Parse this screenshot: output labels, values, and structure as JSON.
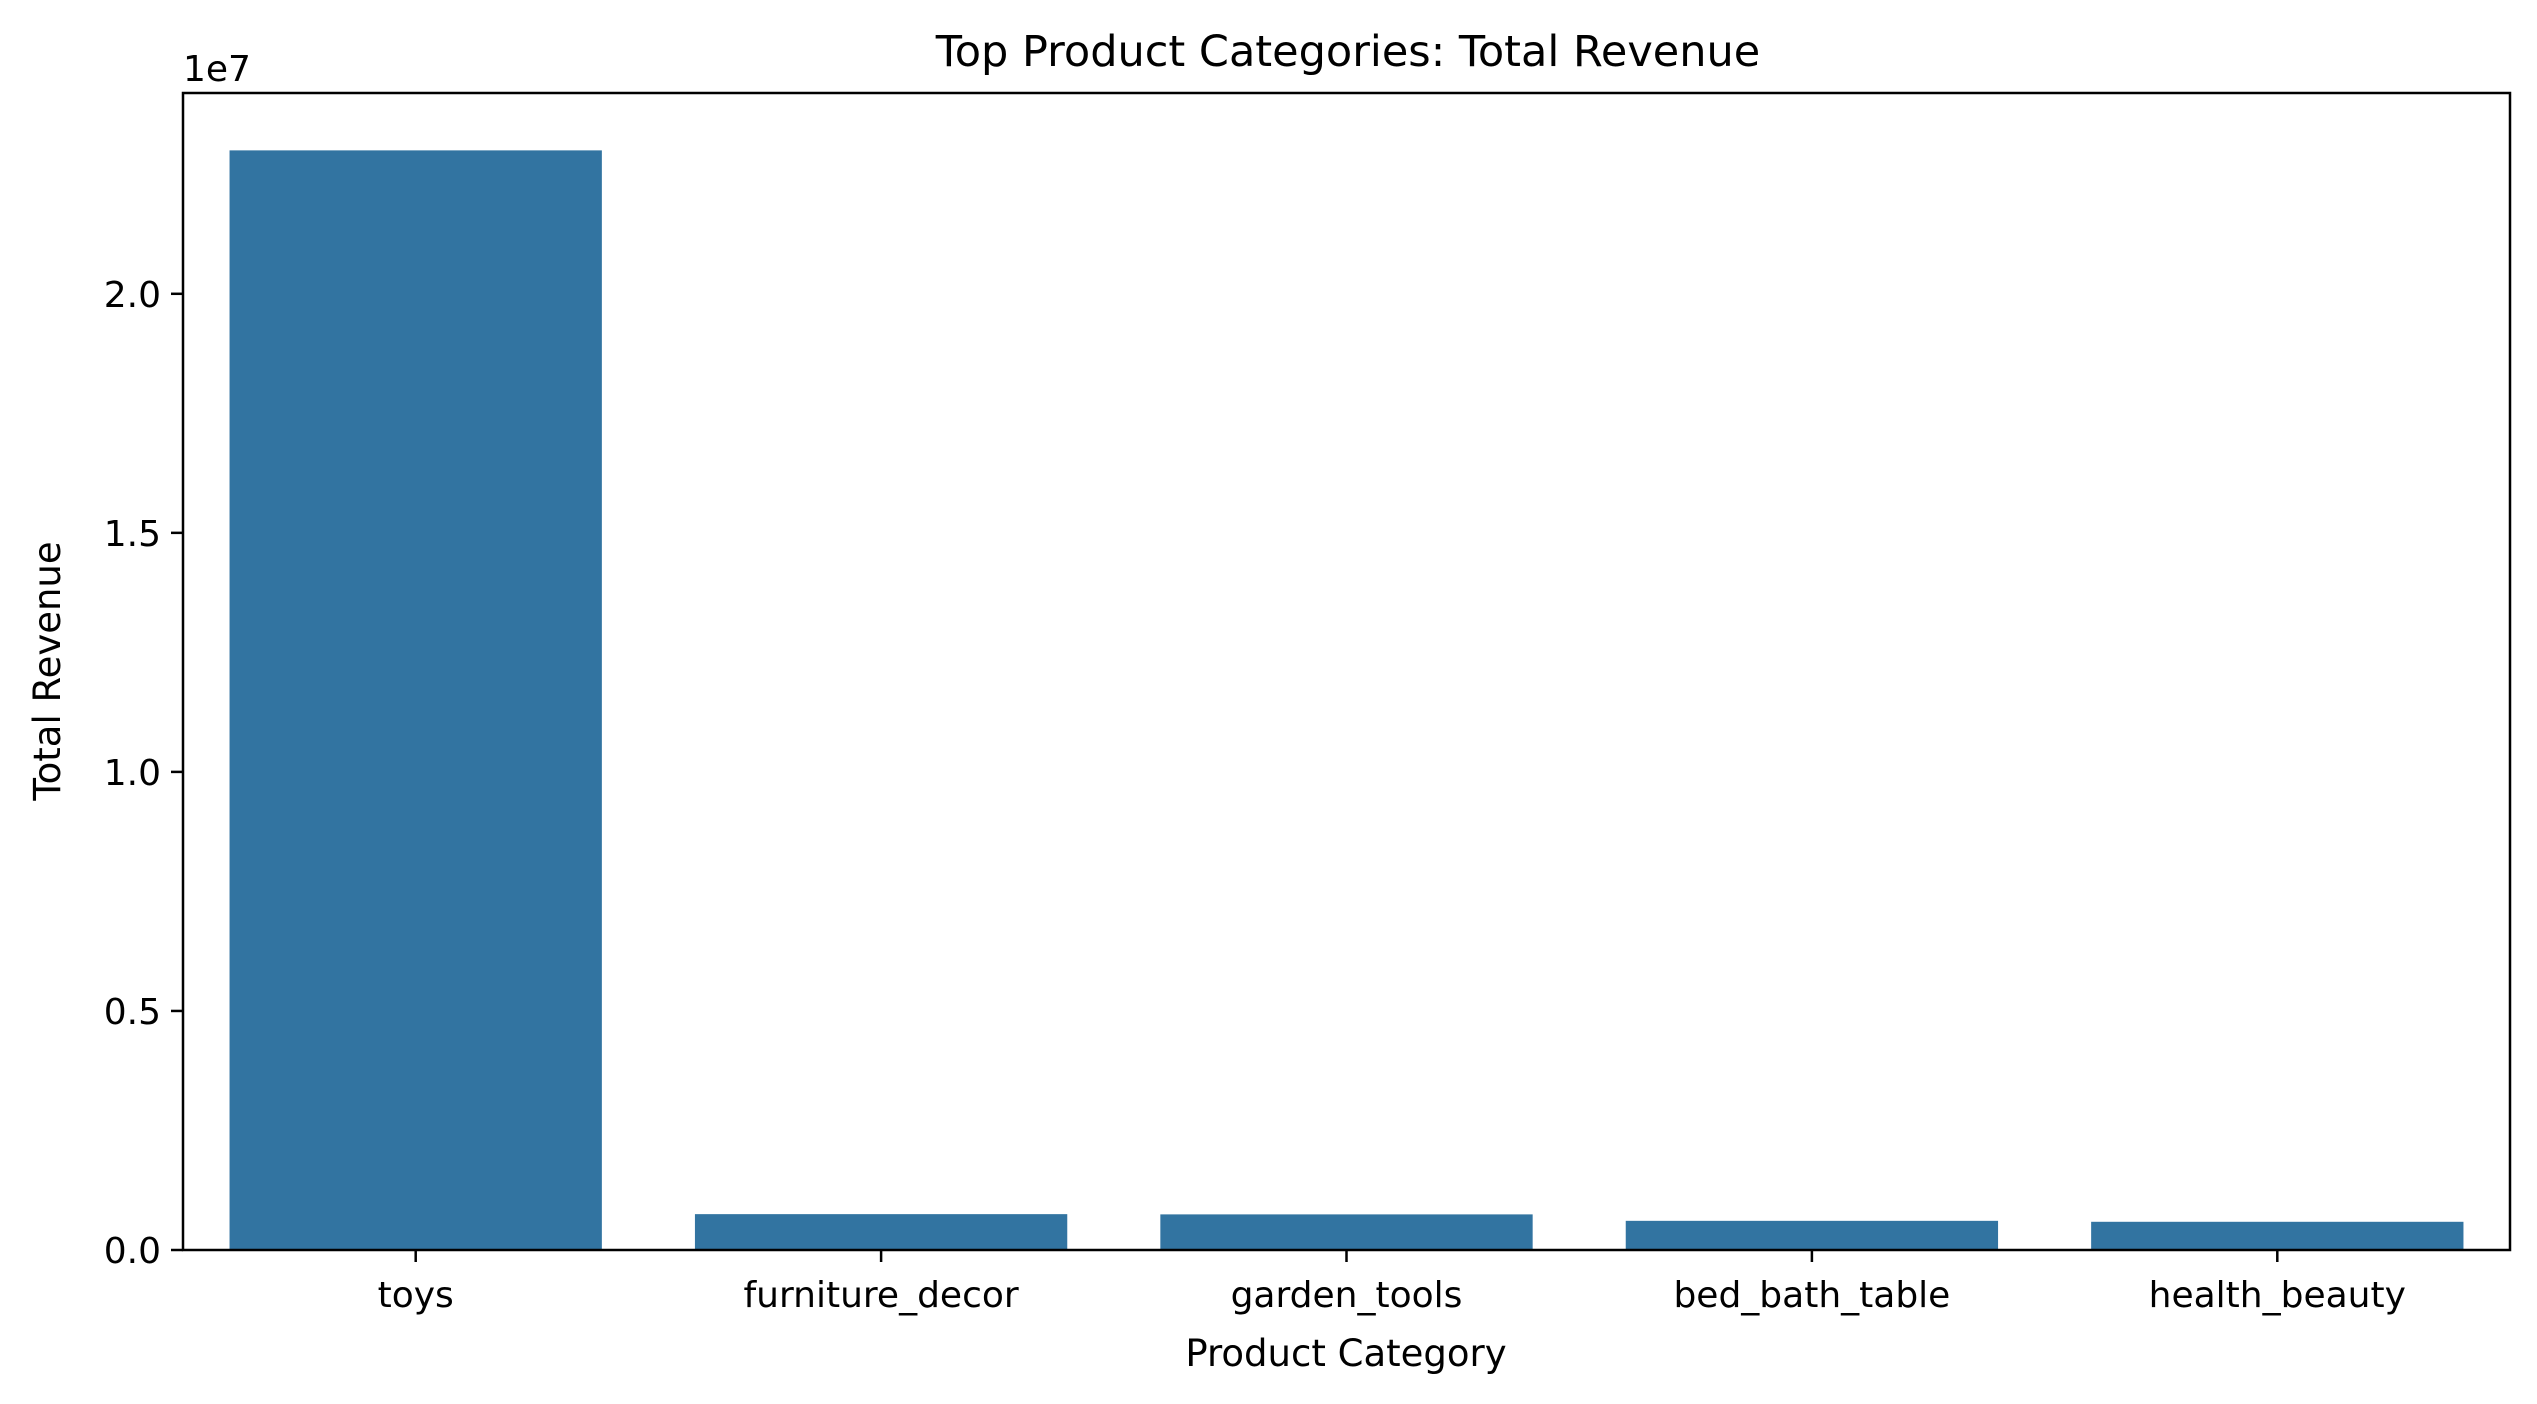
{
  "chart_data": {
    "type": "bar",
    "title": "Top Product Categories: Total Revenue",
    "xlabel": "Product Category",
    "ylabel": "Total Revenue",
    "y_offset_text": "1e7",
    "categories": [
      "toys",
      "furniture_decor",
      "garden_tools",
      "bed_bath_table",
      "health_beauty"
    ],
    "values": [
      23000000,
      750000,
      745000,
      610000,
      590000
    ],
    "ylim": [
      0,
      24200000
    ],
    "yticks": [
      0,
      5000000,
      10000000,
      15000000,
      20000000
    ],
    "ytick_labels": [
      "0.0",
      "0.5",
      "1.0",
      "1.5",
      "2.0"
    ],
    "bar_color": "#3274a1",
    "grid": false,
    "legend": "none"
  }
}
